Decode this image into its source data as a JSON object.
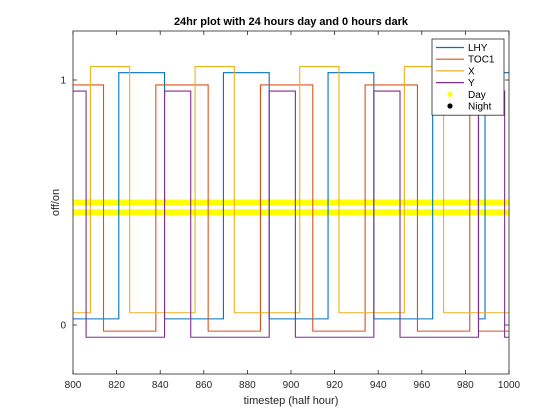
{
  "chart_data": {
    "type": "line",
    "title": "24hr plot with 24 hours day and 0 hours dark",
    "xlabel": "timestep (half hour)",
    "ylabel": "off/on",
    "xlim": [
      800,
      1000
    ],
    "ylim": [
      -0.2,
      1.2
    ],
    "xticks": [
      800,
      820,
      840,
      860,
      880,
      900,
      920,
      940,
      960,
      980,
      1000
    ],
    "yticks": [
      0,
      1
    ],
    "grid": false,
    "legend_position": "top-right",
    "series": [
      {
        "name": "LHY",
        "color": "#0072BD",
        "low": 0.025,
        "high": 1.03,
        "points": [
          [
            800,
            0.025
          ],
          [
            821,
            0.025
          ],
          [
            821,
            1.03
          ],
          [
            842,
            1.03
          ],
          [
            842,
            0.025
          ],
          [
            869,
            0.025
          ],
          [
            869,
            1.03
          ],
          [
            890,
            1.03
          ],
          [
            890,
            0.025
          ],
          [
            917,
            0.025
          ],
          [
            917,
            1.03
          ],
          [
            938,
            1.03
          ],
          [
            938,
            0.025
          ],
          [
            965,
            0.025
          ],
          [
            965,
            1.03
          ],
          [
            986,
            1.03
          ],
          [
            986,
            0.025
          ],
          [
            989,
            0.025
          ],
          [
            989,
            1.03
          ],
          [
            1000,
            1.03
          ]
        ]
      },
      {
        "name": "TOC1",
        "color": "#D95319",
        "low": -0.025,
        "high": 0.98,
        "points": [
          [
            800,
            0.98
          ],
          [
            814,
            0.98
          ],
          [
            814,
            -0.025
          ],
          [
            838,
            -0.025
          ],
          [
            838,
            0.98
          ],
          [
            862,
            0.98
          ],
          [
            862,
            -0.025
          ],
          [
            886,
            -0.025
          ],
          [
            886,
            0.98
          ],
          [
            910,
            0.98
          ],
          [
            910,
            -0.025
          ],
          [
            934,
            -0.025
          ],
          [
            934,
            0.98
          ],
          [
            958,
            0.98
          ],
          [
            958,
            -0.025
          ],
          [
            982,
            -0.025
          ],
          [
            982,
            0.98
          ],
          [
            986,
            0.98
          ],
          [
            986,
            -0.025
          ],
          [
            1000,
            -0.025
          ]
        ]
      },
      {
        "name": "X",
        "color": "#EDB120",
        "low": 0.05,
        "high": 1.055,
        "points": [
          [
            800,
            0.05
          ],
          [
            808,
            0.05
          ],
          [
            808,
            1.055
          ],
          [
            826,
            1.055
          ],
          [
            826,
            0.05
          ],
          [
            856,
            0.05
          ],
          [
            856,
            1.055
          ],
          [
            874,
            1.055
          ],
          [
            874,
            0.05
          ],
          [
            904,
            0.05
          ],
          [
            904,
            1.055
          ],
          [
            922,
            1.055
          ],
          [
            922,
            0.05
          ],
          [
            952,
            0.05
          ],
          [
            952,
            1.055
          ],
          [
            970,
            1.055
          ],
          [
            970,
            0.05
          ],
          [
            1000,
            0.05
          ]
        ]
      },
      {
        "name": "Y",
        "color": "#7E2F8E",
        "low": -0.05,
        "high": 0.955,
        "points": [
          [
            800,
            0.955
          ],
          [
            806,
            0.955
          ],
          [
            806,
            -0.05
          ],
          [
            842,
            -0.05
          ],
          [
            842,
            0.955
          ],
          [
            854,
            0.955
          ],
          [
            854,
            -0.05
          ],
          [
            890,
            -0.05
          ],
          [
            890,
            0.955
          ],
          [
            902,
            0.955
          ],
          [
            902,
            -0.05
          ],
          [
            938,
            -0.05
          ],
          [
            938,
            0.955
          ],
          [
            950,
            0.955
          ],
          [
            950,
            -0.05
          ],
          [
            986,
            -0.05
          ],
          [
            986,
            0.955
          ],
          [
            998,
            0.955
          ],
          [
            998,
            -0.05
          ],
          [
            1000,
            -0.05
          ]
        ]
      }
    ],
    "day_night": [
      {
        "name": "Day",
        "color": "#FFFF00",
        "y": 0.5,
        "x": [
          800,
          1000
        ]
      },
      {
        "name": "Day",
        "color": "#FFFF00",
        "y": 0.46,
        "x": [
          800,
          1000
        ]
      }
    ],
    "legend": [
      {
        "label": "LHY",
        "kind": "line",
        "color": "#0072BD"
      },
      {
        "label": "TOC1",
        "kind": "line",
        "color": "#D95319"
      },
      {
        "label": "X",
        "kind": "line",
        "color": "#EDB120"
      },
      {
        "label": "Y",
        "kind": "line",
        "color": "#7E2F8E"
      },
      {
        "label": "Day",
        "kind": "marker",
        "color": "#FFFF00"
      },
      {
        "label": "Night",
        "kind": "marker",
        "color": "#000000"
      }
    ]
  }
}
